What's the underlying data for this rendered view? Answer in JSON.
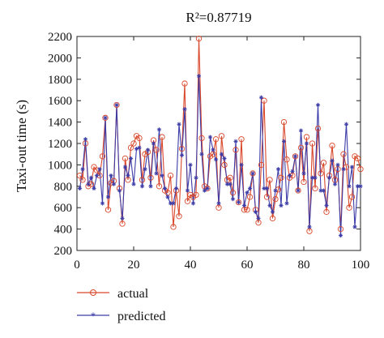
{
  "chart_data": {
    "type": "line",
    "title": "R²=0.87719",
    "xlabel": "",
    "ylabel": "Taxi-out time (s)",
    "xlim": [
      0,
      100
    ],
    "ylim": [
      200,
      2200
    ],
    "xticks": [
      0,
      20,
      40,
      60,
      80,
      100
    ],
    "yticks": [
      200,
      400,
      600,
      800,
      1000,
      1200,
      1400,
      1600,
      1800,
      2000,
      2200
    ],
    "grid": false,
    "legend_position": "bottom-left, below plot",
    "series": [
      {
        "name": "actual",
        "color": "#d9472b",
        "marker": "circle",
        "x": [
          1,
          2,
          3,
          4,
          5,
          6,
          7,
          8,
          9,
          10,
          11,
          12,
          13,
          14,
          15,
          16,
          17,
          18,
          19,
          20,
          21,
          22,
          23,
          24,
          25,
          26,
          27,
          28,
          29,
          30,
          31,
          32,
          33,
          34,
          35,
          36,
          37,
          38,
          39,
          40,
          41,
          42,
          43,
          44,
          45,
          46,
          47,
          48,
          49,
          50,
          51,
          52,
          53,
          54,
          55,
          56,
          57,
          58,
          59,
          60,
          61,
          62,
          63,
          64,
          65,
          66,
          67,
          68,
          69,
          70,
          71,
          72,
          73,
          74,
          75,
          76,
          77,
          78,
          79,
          80,
          81,
          82,
          83,
          84,
          85,
          86,
          87,
          88,
          89,
          90,
          91,
          92,
          93,
          94,
          95,
          96,
          97,
          98,
          99,
          100
        ],
        "values": [
          900,
          860,
          1200,
          800,
          820,
          980,
          950,
          900,
          1080,
          1440,
          580,
          830,
          850,
          1560,
          780,
          450,
          1060,
          860,
          1160,
          1200,
          1270,
          1250,
          860,
          1100,
          1120,
          880,
          1230,
          1140,
          800,
          1260,
          760,
          740,
          900,
          420,
          760,
          520,
          1150,
          1760,
          660,
          720,
          700,
          720,
          2180,
          1250,
          800,
          780,
          1080,
          1100,
          1240,
          600,
          1270,
          1000,
          860,
          880,
          740,
          1140,
          650,
          1240,
          580,
          580,
          700,
          920,
          580,
          460,
          1000,
          1600,
          700,
          860,
          500,
          680,
          770,
          880,
          1400,
          1050,
          880,
          900,
          1080,
          760,
          1160,
          840,
          1260,
          380,
          1200,
          780,
          1340,
          920,
          1020,
          560,
          900,
          1180,
          860,
          960,
          400,
          1100,
          980,
          600,
          700,
          1080,
          1060,
          960
        ]
      },
      {
        "name": "predicted",
        "color": "#3c3ca8",
        "marker": "star",
        "x": [
          1,
          2,
          3,
          4,
          5,
          6,
          7,
          8,
          9,
          10,
          11,
          12,
          13,
          14,
          15,
          16,
          17,
          18,
          19,
          20,
          21,
          22,
          23,
          24,
          25,
          26,
          27,
          28,
          29,
          30,
          31,
          32,
          33,
          34,
          35,
          36,
          37,
          38,
          39,
          40,
          41,
          42,
          43,
          44,
          45,
          46,
          47,
          48,
          49,
          50,
          51,
          52,
          53,
          54,
          55,
          56,
          57,
          58,
          59,
          60,
          61,
          62,
          63,
          64,
          65,
          66,
          67,
          68,
          69,
          70,
          71,
          72,
          73,
          74,
          75,
          76,
          77,
          78,
          79,
          80,
          81,
          82,
          83,
          84,
          85,
          86,
          87,
          88,
          89,
          90,
          91,
          92,
          93,
          94,
          95,
          96,
          97,
          98,
          99,
          100
        ],
        "values": [
          780,
          960,
          1240,
          820,
          880,
          780,
          900,
          960,
          640,
          1440,
          700,
          900,
          820,
          1560,
          760,
          500,
          980,
          900,
          1060,
          820,
          1150,
          1160,
          800,
          960,
          1140,
          800,
          1200,
          920,
          1330,
          900,
          780,
          700,
          640,
          640,
          780,
          1380,
          1090,
          1520,
          760,
          1000,
          640,
          880,
          1830,
          1100,
          760,
          780,
          1260,
          1140,
          1050,
          640,
          1100,
          1060,
          820,
          820,
          680,
          1220,
          650,
          1000,
          620,
          740,
          780,
          920,
          560,
          500,
          1630,
          780,
          780,
          620,
          560,
          760,
          960,
          620,
          1220,
          640,
          900,
          940,
          1080,
          760,
          1320,
          920,
          1200,
          420,
          880,
          880,
          1560,
          760,
          760,
          620,
          880,
          1040,
          820,
          1000,
          340,
          960,
          1380,
          800,
          980,
          420,
          800,
          800
        ]
      }
    ]
  }
}
